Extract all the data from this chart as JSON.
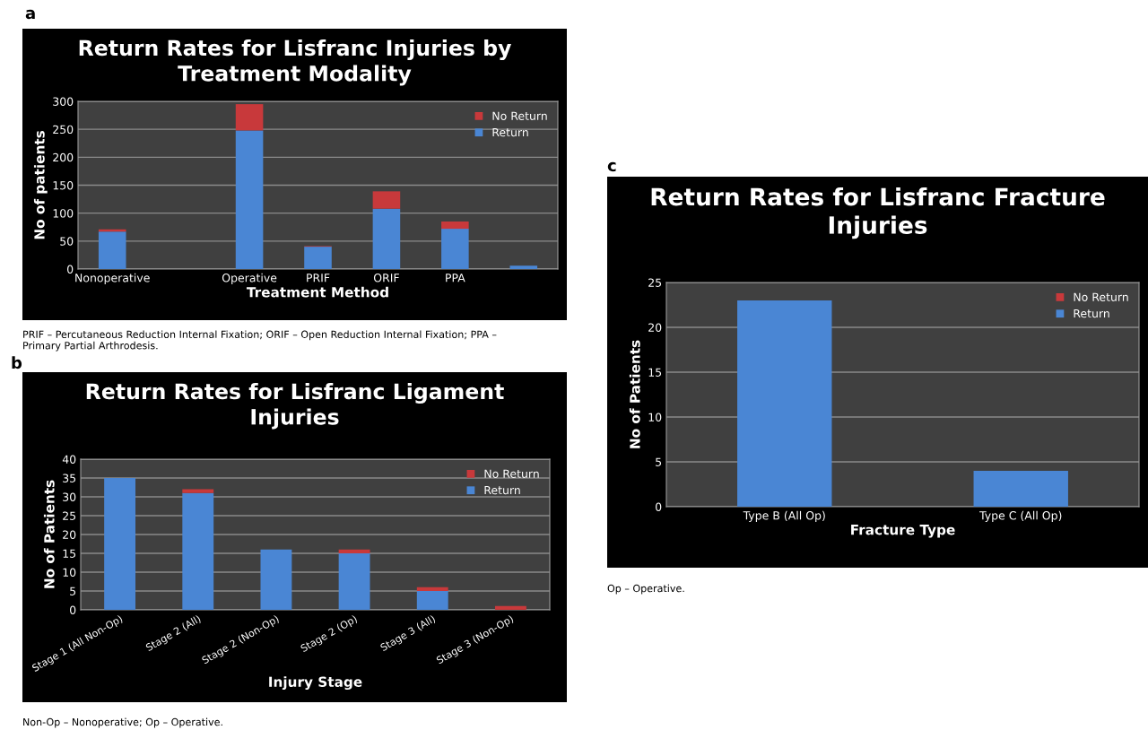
{
  "chart_data": [
    {
      "type": "bar",
      "title": "Return Rates for Lisfranc Injuries by Treatment Modality",
      "xlabel": "Treatment Method",
      "ylabel": "No of patients",
      "categories": [
        "Nonoperative",
        null,
        "Operative",
        "PRIF",
        "ORIF",
        "PPA",
        null
      ],
      "stacked": true,
      "series": [
        {
          "name": "Return",
          "color": "#4a86d4",
          "values": [
            67,
            null,
            248,
            40,
            108,
            72,
            6
          ]
        },
        {
          "name": "No Return",
          "color": "#c8393b",
          "values": [
            4,
            null,
            47,
            1,
            31,
            13,
            0
          ]
        }
      ],
      "ylim": [
        0,
        300
      ],
      "yticks": [
        0,
        50,
        100,
        150,
        200,
        250,
        300
      ],
      "grid": "y",
      "legend": "top right",
      "annotations": [
        "a",
        "PRIF – Percutaneous Reduction Internal Fixation; ORIF – Open Reduction Internal Fixation; PPA – Primary Partial Arthrodesis."
      ]
    },
    {
      "type": "bar",
      "title": "Return Rates for Lisfranc Ligament Injuries",
      "xlabel": "Injury Stage",
      "ylabel": "No of Patients",
      "categories": [
        "Stage 1 (All Non-Op)",
        "Stage 2 (All)",
        "Stage 2 (Non-Op)",
        "Stage 2 (Op)",
        "Stage 3 (All)",
        "Stage 3 (Non-Op)"
      ],
      "stacked": true,
      "series": [
        {
          "name": "Return",
          "color": "#4a86d4",
          "values": [
            35,
            31,
            16,
            15,
            5,
            0
          ]
        },
        {
          "name": "No Return",
          "color": "#c8393b",
          "values": [
            0,
            1,
            0,
            1,
            1,
            1
          ]
        }
      ],
      "ylim": [
        0,
        40
      ],
      "yticks": [
        0,
        5,
        10,
        15,
        20,
        25,
        30,
        35,
        40
      ],
      "grid": "y",
      "legend": "top right",
      "annotations": [
        "b",
        "Non-Op – Nonoperative; Op – Operative."
      ]
    },
    {
      "type": "bar",
      "title": "Return Rates for Lisfranc Fracture Injuries",
      "xlabel": "Fracture Type",
      "ylabel": "No of Patients",
      "categories": [
        "Type B (All Op)",
        "Type C (All Op)"
      ],
      "stacked": true,
      "series": [
        {
          "name": "Return",
          "color": "#4a86d4",
          "values": [
            23,
            4
          ]
        },
        {
          "name": "No Return",
          "color": "#c8393b",
          "values": [
            0,
            0
          ]
        }
      ],
      "ylim": [
        0,
        25
      ],
      "yticks": [
        0,
        5,
        10,
        15,
        20,
        25
      ],
      "grid": "y",
      "legend": "top right",
      "annotations": [
        "c",
        "Op – Operative."
      ]
    }
  ]
}
